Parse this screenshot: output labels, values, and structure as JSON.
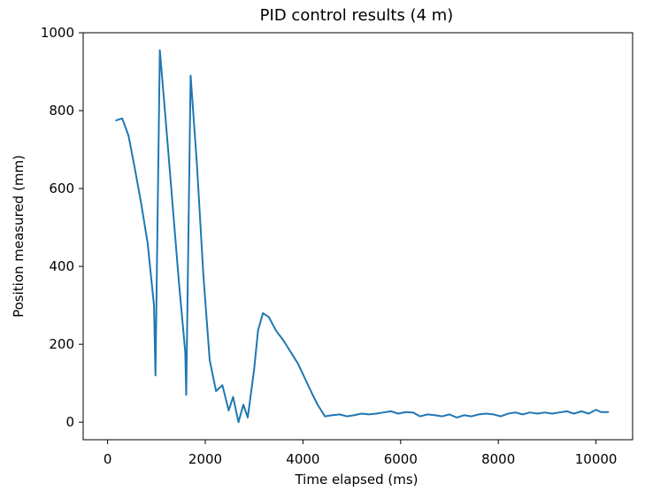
{
  "chart_data": {
    "type": "line",
    "title": "PID control results (4 m)",
    "xlabel": "Time elapsed (ms)",
    "ylabel": "Position measured (mm)",
    "xlim": [
      -500,
      10750
    ],
    "ylim": [
      -45,
      1000
    ],
    "x_ticks": [
      0,
      2000,
      4000,
      6000,
      8000,
      10000
    ],
    "y_ticks": [
      0,
      200,
      400,
      600,
      800,
      1000
    ],
    "grid": false,
    "line_color": "#1f77b4",
    "series": [
      {
        "name": "Position measured",
        "x": [
          175,
          300,
          430,
          560,
          690,
          820,
          950,
          980,
          1070,
          1200,
          1330,
          1460,
          1590,
          1610,
          1700,
          1830,
          1960,
          2090,
          2220,
          2350,
          2480,
          2570,
          2680,
          2780,
          2870,
          3000,
          3080,
          3180,
          3300,
          3450,
          3600,
          3750,
          3900,
          4050,
          4200,
          4300,
          4450,
          4600,
          4750,
          4900,
          5050,
          5200,
          5350,
          5500,
          5650,
          5800,
          5950,
          6100,
          6250,
          6400,
          6550,
          6700,
          6850,
          7000,
          7150,
          7300,
          7450,
          7600,
          7750,
          7900,
          8050,
          8200,
          8350,
          8500,
          8650,
          8800,
          8950,
          9100,
          9250,
          9400,
          9550,
          9700,
          9850,
          10000,
          10100,
          10250
        ],
        "y": [
          775,
          780,
          735,
          650,
          560,
          460,
          300,
          120,
          955,
          760,
          560,
          360,
          180,
          70,
          890,
          660,
          380,
          160,
          80,
          95,
          30,
          65,
          0,
          45,
          12,
          135,
          235,
          280,
          270,
          235,
          210,
          180,
          150,
          110,
          70,
          45,
          15,
          18,
          20,
          15,
          18,
          22,
          20,
          22,
          25,
          28,
          22,
          26,
          25,
          15,
          20,
          18,
          15,
          20,
          12,
          18,
          15,
          20,
          22,
          20,
          15,
          22,
          25,
          20,
          25,
          22,
          25,
          22,
          25,
          28,
          22,
          28,
          22,
          32,
          26,
          26
        ]
      }
    ]
  }
}
